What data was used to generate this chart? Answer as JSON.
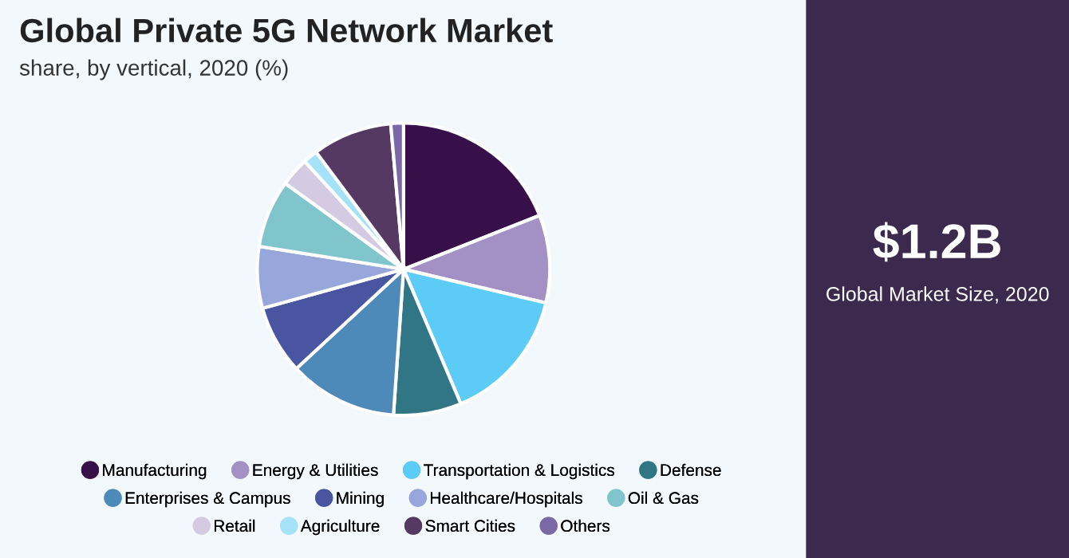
{
  "chart_data": {
    "type": "pie",
    "title": "Global Private 5G Network Market",
    "subtitle": "share, by vertical, 2020 (%)",
    "categories": [
      "Manufacturing",
      "Energy & Utilities",
      "Transportation & Logistics",
      "Defense",
      "Enterprises & Campus",
      "Mining",
      "Healthcare/Hospitals",
      "Oil & Gas",
      "Retail",
      "Agriculture",
      "Smart Cities",
      "Others"
    ],
    "values": [
      19,
      9.7,
      14.9,
      7.5,
      12,
      7.6,
      6.8,
      7.5,
      3.2,
      1.6,
      8.8,
      1.4
    ],
    "colors": [
      "#37104a",
      "#a391c5",
      "#5ccbf5",
      "#317685",
      "#4d8ab9",
      "#4a55a2",
      "#97a6db",
      "#81c5cc",
      "#d4cbe3",
      "#a5e2f8",
      "#553963",
      "#7b68a6"
    ],
    "legend": "bottom",
    "annotations": [
      "$1.2B",
      "Global Market Size, 2020"
    ]
  }
}
